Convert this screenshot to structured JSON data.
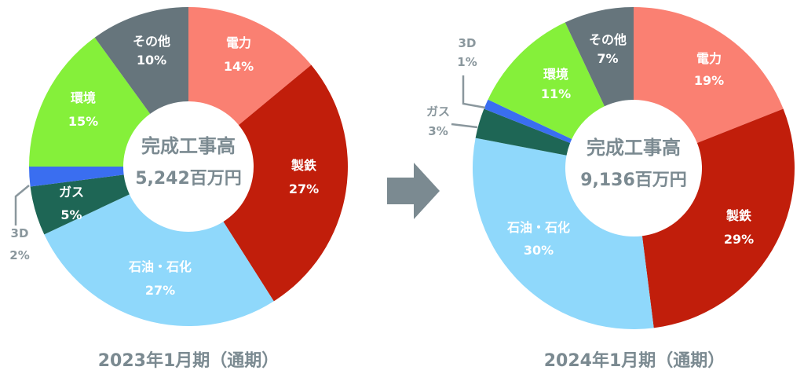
{
  "chart_data": [
    {
      "type": "pie",
      "variant": "donut",
      "period": "2023年1月期（通期）",
      "center_title": "完成工事高",
      "center_value": "5,242百万円",
      "slices": [
        {
          "label": "電力",
          "value": 14,
          "display": "14%",
          "color": "#fa8072"
        },
        {
          "label": "製鉄",
          "value": 27,
          "display": "27%",
          "color": "#c11e0b"
        },
        {
          "label": "石油・石化",
          "display_label": "石油・石化",
          "value": 27,
          "display": "27%",
          "color": "#8fd8fb"
        },
        {
          "label": "ガス",
          "value": 5,
          "display": "5%",
          "color": "#1e6655"
        },
        {
          "label": "3D",
          "value": 2,
          "display": "2%",
          "color": "#3a6ef0"
        },
        {
          "label": "環境",
          "value": 15,
          "display": "15%",
          "color": "#85f03a"
        },
        {
          "label": "その他",
          "value": 10,
          "display": "10%",
          "color": "#66757c"
        }
      ]
    },
    {
      "type": "pie",
      "variant": "donut",
      "period": "2024年1月期（通期）",
      "center_title": "完成工事高",
      "center_value": "9,136百万円",
      "slices": [
        {
          "label": "電力",
          "value": 19,
          "display": "19%",
          "color": "#fa8072"
        },
        {
          "label": "製鉄",
          "value": 29,
          "display": "29%",
          "color": "#c11e0b"
        },
        {
          "label": "石油・石化",
          "value": 30,
          "display": "30%",
          "color": "#8fd8fb"
        },
        {
          "label": "ガス",
          "value": 3,
          "display": "3%",
          "color": "#1e6655"
        },
        {
          "label": "3D",
          "value": 1,
          "display": "1%",
          "color": "#3a6ef0"
        },
        {
          "label": "環境",
          "value": 11,
          "display": "11%",
          "color": "#85f03a"
        },
        {
          "label": "その他",
          "value": 7,
          "display": "7%",
          "color": "#66757c"
        }
      ]
    }
  ],
  "arrow_color": "#7b8a91"
}
